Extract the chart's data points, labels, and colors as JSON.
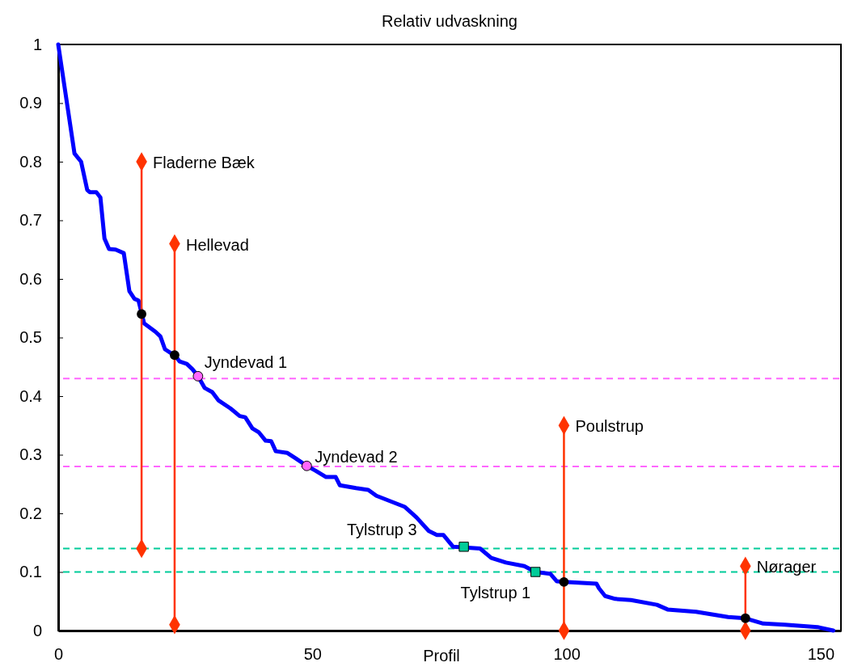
{
  "chart_data": {
    "type": "line",
    "title": "Relativ udvaskning",
    "xlabel": "Profil",
    "xlim": [
      0,
      154
    ],
    "xticks": [
      0,
      50,
      100,
      150
    ],
    "ylim": [
      0,
      1
    ],
    "yticks": [
      0,
      0.1,
      0.2,
      0.3,
      0.4,
      0.5,
      0.6,
      0.7,
      0.8,
      0.9,
      1
    ],
    "grid": false,
    "series": [
      {
        "color": "#0000ff",
        "marker": "none",
        "x": [
          0,
          3.2,
          4.5,
          5.7,
          6.2,
          7.5,
          8.3,
          9.1,
          10.0,
          11.3,
          12.9,
          14.0,
          15.0,
          15.8,
          16.9,
          19.1,
          20.1,
          21.0,
          23.1,
          23.9,
          25.3,
          26.4,
          27.5,
          28.8,
          30.3,
          31.5,
          33.9,
          35.7,
          36.8,
          38.2,
          39.5,
          40.8,
          41.9,
          42.8,
          45.1,
          46.7,
          48.9,
          50.6,
          52.7,
          54.6,
          55.4,
          58.6,
          61.0,
          62.6,
          68.2,
          70.5,
          72.9,
          74.5,
          75.8,
          77.7,
          83.0,
          85.2,
          88.1,
          91.7,
          93.9,
          96.8,
          98.1,
          99.5,
          105.9,
          106.4,
          107.6,
          109.6,
          112.7,
          117.8,
          119.9,
          125.5,
          131.8,
          135.2,
          138.7,
          143.0,
          149.4,
          152.5
        ],
        "values": [
          1,
          0.814,
          0.8,
          0.752,
          0.748,
          0.748,
          0.739,
          0.669,
          0.651,
          0.65,
          0.644,
          0.579,
          0.566,
          0.563,
          0.524,
          0.51,
          0.502,
          0.48,
          0.468,
          0.459,
          0.455,
          0.446,
          0.434,
          0.414,
          0.407,
          0.393,
          0.379,
          0.366,
          0.364,
          0.345,
          0.338,
          0.324,
          0.323,
          0.306,
          0.303,
          0.294,
          0.281,
          0.273,
          0.262,
          0.262,
          0.248,
          0.243,
          0.24,
          0.23,
          0.211,
          0.193,
          0.17,
          0.163,
          0.163,
          0.143,
          0.14,
          0.124,
          0.116,
          0.11,
          0.1,
          0.097,
          0.084,
          0.083,
          0.08,
          0.072,
          0.059,
          0.054,
          0.052,
          0.044,
          0.036,
          0.032,
          0.023,
          0.021,
          0.012,
          0.01,
          0.006,
          0
        ]
      },
      {
        "type": "line",
        "name": "Fladerne Bæk",
        "color": "#ff3300",
        "marker": "diamond",
        "x": [
          16.4,
          16.4
        ],
        "values": [
          0.14,
          0.8
        ]
      },
      {
        "type": "line",
        "name": "Hellevad",
        "color": "#ff3300",
        "marker": "diamond",
        "x": [
          22.9,
          22.9
        ],
        "values": [
          0.01,
          0.66
        ]
      },
      {
        "type": "line",
        "name": "Poulstrup",
        "color": "#ff3300",
        "marker": "diamond",
        "x": [
          99.5,
          99.5
        ],
        "values": [
          0,
          0.35
        ]
      },
      {
        "type": "line",
        "name": "Nørager",
        "color": "#ff3300",
        "marker": "diamond",
        "x": [
          135.2,
          135.2
        ],
        "values": [
          0,
          0.11
        ]
      },
      {
        "type": "scatter",
        "color": "#000000",
        "marker": "circle",
        "x": [
          16.4,
          22.9,
          99.5,
          135.2
        ],
        "values": [
          0.54,
          0.47,
          0.083,
          0.021
        ]
      },
      {
        "type": "scatter",
        "name": "Jyndevad 1",
        "color": "#ff66ff",
        "marker": "circle",
        "x": [
          27.5
        ],
        "values": [
          0.434
        ]
      },
      {
        "type": "scatter",
        "name": "Jyndevad 2",
        "color": "#ff66ff",
        "marker": "circle",
        "x": [
          48.9
        ],
        "values": [
          0.281
        ]
      },
      {
        "type": "scatter",
        "name": "Tylstrup 3",
        "color": "#00cc99",
        "marker": "square",
        "x": [
          79.8
        ],
        "values": [
          0.143
        ]
      },
      {
        "type": "scatter",
        "name": "Tylstrup 1",
        "color": "#00cc99",
        "marker": "square",
        "x": [
          93.9
        ],
        "values": [
          0.1
        ]
      }
    ],
    "ref_lines": [
      {
        "axis": "y",
        "value": 0.43,
        "color": "#ff66ff",
        "line_style": "dashed"
      },
      {
        "axis": "y",
        "value": 0.28,
        "color": "#ff66ff",
        "line_style": "dashed"
      },
      {
        "axis": "y",
        "value": 0.14,
        "color": "#00cc99",
        "line_style": "dashed"
      },
      {
        "axis": "y",
        "value": 0.1,
        "color": "#00cc99",
        "line_style": "dashed"
      }
    ]
  }
}
